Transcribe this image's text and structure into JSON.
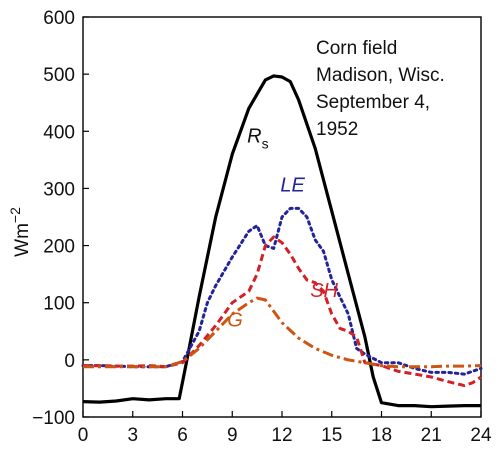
{
  "chart_data": {
    "type": "line",
    "title": "",
    "ylabel": "Wm",
    "ylabel_exp": "−2",
    "xlabel": "",
    "xlim": [
      0,
      24
    ],
    "ylim": [
      -100,
      600
    ],
    "xticks": [
      0,
      3,
      6,
      9,
      12,
      15,
      18,
      21,
      24
    ],
    "yticks": [
      -100,
      0,
      100,
      200,
      300,
      400,
      500,
      600
    ],
    "grid": false,
    "annotation": [
      "Corn field",
      "Madison, Wisc.",
      "September 4,",
      "1952"
    ],
    "series": [
      {
        "name": "Rs",
        "label_main": "R",
        "label_sub": "s",
        "color": "#000000",
        "style": "solid",
        "x": [
          0,
          1,
          2,
          3,
          4,
          5,
          5.8,
          6.2,
          7,
          8,
          9,
          10,
          11,
          11.5,
          12,
          12.5,
          13,
          14,
          15,
          16,
          17,
          17.5,
          18,
          19,
          20,
          21,
          22,
          23,
          24
        ],
        "y": [
          -73,
          -74,
          -72,
          -68,
          -70,
          -68,
          -68,
          -10,
          110,
          250,
          360,
          440,
          490,
          497,
          495,
          487,
          455,
          370,
          260,
          150,
          40,
          -30,
          -75,
          -80,
          -80,
          -82,
          -81,
          -80,
          -80
        ]
      },
      {
        "name": "LE",
        "label_main": "LE",
        "color": "#23239a",
        "style": "dotted",
        "x": [
          0,
          1,
          2,
          3,
          4,
          5,
          6,
          7,
          7.5,
          8,
          9,
          10,
          10.5,
          11,
          11.5,
          12,
          12.5,
          13,
          13.5,
          14,
          14.5,
          15,
          16,
          16.5,
          17,
          18,
          19,
          20,
          21,
          22,
          23,
          24
        ],
        "y": [
          -10,
          -10,
          -11,
          -12,
          -12,
          -12,
          -3,
          50,
          100,
          130,
          180,
          225,
          235,
          200,
          195,
          250,
          265,
          265,
          250,
          210,
          190,
          140,
          80,
          20,
          10,
          -5,
          -5,
          -15,
          -22,
          -22,
          -25,
          -15
        ]
      },
      {
        "name": "SH",
        "label_main": "SH",
        "color": "#d32026",
        "style": "dashed",
        "x": [
          0,
          1,
          2,
          3,
          4,
          5,
          6,
          7,
          8,
          9,
          10,
          10.5,
          11,
          11.5,
          12,
          12.5,
          13,
          13.5,
          14,
          14.5,
          15,
          15.5,
          16,
          16.5,
          17,
          18,
          19,
          20,
          21,
          22,
          23,
          23.5,
          24
        ],
        "y": [
          -10,
          -10,
          -11,
          -11,
          -10,
          -12,
          -5,
          25,
          60,
          100,
          120,
          150,
          200,
          215,
          205,
          185,
          160,
          140,
          135,
          120,
          80,
          55,
          50,
          40,
          -5,
          -10,
          -20,
          -25,
          -30,
          -38,
          -45,
          -40,
          -30
        ]
      },
      {
        "name": "G",
        "label_main": "G",
        "color": "#cc5511",
        "style": "dashdot",
        "x": [
          0,
          1,
          2,
          3,
          4,
          5,
          6,
          7,
          8,
          9,
          10,
          10.5,
          11,
          11.5,
          12,
          13,
          14,
          15,
          16,
          17,
          18,
          19,
          20,
          21,
          22,
          23,
          24
        ],
        "y": [
          -12,
          -12,
          -12,
          -12,
          -12,
          -12,
          -3,
          20,
          50,
          80,
          100,
          108,
          105,
          85,
          65,
          38,
          20,
          8,
          0,
          -5,
          -10,
          -12,
          -12,
          -12,
          -11,
          -11,
          -10
        ]
      }
    ]
  }
}
